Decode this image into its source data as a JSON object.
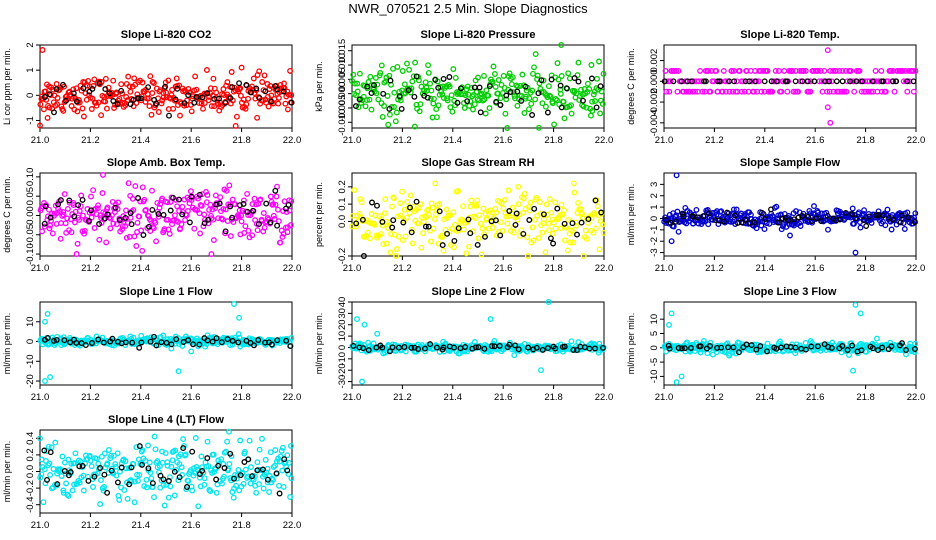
{
  "page_title": "NWR_070521  2.5 Min. Slope Diagnostics",
  "chart_data": [
    {
      "type": "scatter",
      "title": "Slope Li-820 CO2",
      "ylabel": "Li cor ppm per min.",
      "color": "#ff0000",
      "xlim": [
        21.0,
        22.0
      ],
      "xticks": [
        21.0,
        21.2,
        21.4,
        21.6,
        21.8,
        22.0
      ],
      "ylim": [
        -1.3,
        2.0
      ],
      "yticks": [
        -1.0,
        0.0,
        1.0,
        2.0
      ],
      "spread": 0.35,
      "outliers": [
        [
          21.01,
          1.8
        ],
        [
          21.0,
          -1.2
        ],
        [
          21.8,
          1.1
        ],
        [
          21.03,
          -0.9
        ]
      ],
      "n": 300
    },
    {
      "type": "scatter",
      "title": "Slope Li-820 Pressure",
      "ylabel": "kPa per min.",
      "color": "#00cc00",
      "xlim": [
        21.0,
        22.0
      ],
      "xticks": [
        21.0,
        21.2,
        21.4,
        21.6,
        21.8,
        22.0
      ],
      "ylim": [
        -0.012,
        0.017
      ],
      "yticks": [
        -0.01,
        -0.005,
        0.0,
        0.005,
        0.01,
        0.015
      ],
      "spread": 0.0045,
      "outliers": [
        [
          21.83,
          0.017
        ],
        [
          21.95,
          0.01
        ]
      ],
      "n": 280
    },
    {
      "type": "scatter",
      "title": "Slope Li-820 Temp.",
      "ylabel": "degrees C per min.",
      "color": "#ff00ff",
      "xlim": [
        21.0,
        22.0
      ],
      "xticks": [
        21.0,
        21.2,
        21.4,
        21.6,
        21.8,
        22.0
      ],
      "ylim": [
        -0.0045,
        0.0035
      ],
      "yticks": [
        -0.004,
        -0.002,
        0.0,
        0.002
      ],
      "spread": 0.0,
      "levels": [
        -0.001,
        0.0,
        0.001
      ],
      "outliers": [
        [
          21.65,
          0.003
        ],
        [
          21.66,
          -0.004
        ],
        [
          21.65,
          -0.0025
        ]
      ],
      "n": 220
    },
    {
      "type": "scatter",
      "title": "Slope Amb. Box Temp.",
      "ylabel": "degrees C per min.",
      "color": "#ff00ff",
      "xlim": [
        21.0,
        22.0
      ],
      "xticks": [
        21.0,
        21.2,
        21.4,
        21.6,
        21.8,
        22.0
      ],
      "ylim": [
        -0.105,
        0.11
      ],
      "yticks": [
        -0.1,
        -0.05,
        0.0,
        0.05,
        0.1
      ],
      "spread": 0.035,
      "outliers": [
        [
          21.25,
          0.105
        ],
        [
          21.68,
          -0.1
        ]
      ],
      "n": 300
    },
    {
      "type": "scatter",
      "title": "Slope Gas Stream RH",
      "ylabel": "percent per min.",
      "color": "#ffff00",
      "xlim": [
        21.0,
        22.0
      ],
      "xticks": [
        21.0,
        21.2,
        21.4,
        21.6,
        21.8,
        22.0
      ],
      "ylim": [
        -0.2,
        0.28
      ],
      "yticks": [
        -0.2,
        0.0,
        0.1,
        0.2
      ],
      "spread": 0.08,
      "outliers": [
        [
          21.33,
          0.22
        ],
        [
          21.66,
          0.2
        ],
        [
          21.88,
          0.22
        ]
      ],
      "n": 260
    },
    {
      "type": "scatter",
      "title": "Slope Sample Flow",
      "ylabel": "ml/min per min.",
      "color": "#0000cc",
      "xlim": [
        21.0,
        22.0
      ],
      "xticks": [
        21.0,
        21.2,
        21.4,
        21.6,
        21.8,
        22.0
      ],
      "ylim": [
        -3.3,
        4.0
      ],
      "yticks": [
        -3,
        -2,
        -1,
        0,
        1,
        2,
        3
      ],
      "spread": 0.4,
      "outliers": [
        [
          21.05,
          3.8
        ],
        [
          21.03,
          -2.0
        ],
        [
          21.76,
          -3.0
        ],
        [
          21.5,
          -1.5
        ]
      ],
      "n": 320
    },
    {
      "type": "scatter",
      "title": "Slope Line 1 Flow",
      "ylabel": "ml/min per min.",
      "color": "#00e5ee",
      "xlim": [
        21.0,
        22.0
      ],
      "xticks": [
        21.0,
        21.2,
        21.4,
        21.6,
        21.8,
        22.0
      ],
      "ylim": [
        -22,
        20
      ],
      "yticks": [
        -20,
        -10,
        0,
        10
      ],
      "spread": 1.2,
      "outliers": [
        [
          21.02,
          -20
        ],
        [
          21.04,
          -18
        ],
        [
          21.03,
          14
        ],
        [
          21.02,
          10
        ],
        [
          21.77,
          19
        ],
        [
          21.79,
          12
        ],
        [
          21.55,
          -15
        ],
        [
          21.6,
          -5
        ]
      ],
      "n": 300
    },
    {
      "type": "scatter",
      "title": "Slope Line 2 Flow",
      "ylabel": "ml/min per min.",
      "color": "#00e5ee",
      "xlim": [
        21.0,
        22.0
      ],
      "xticks": [
        21.0,
        21.2,
        21.4,
        21.6,
        21.8,
        22.0
      ],
      "ylim": [
        -33,
        40
      ],
      "yticks": [
        -30,
        -20,
        -10,
        0,
        10,
        20,
        30,
        40
      ],
      "spread": 2.0,
      "outliers": [
        [
          21.04,
          -30
        ],
        [
          21.02,
          25
        ],
        [
          21.05,
          20
        ],
        [
          21.55,
          25
        ],
        [
          21.78,
          40
        ],
        [
          21.75,
          -20
        ],
        [
          21.1,
          12
        ]
      ],
      "n": 300
    },
    {
      "type": "scatter",
      "title": "Slope Line 3 Flow",
      "ylabel": "ml/min per min.",
      "color": "#00e5ee",
      "xlim": [
        21.0,
        22.0
      ],
      "xticks": [
        21.0,
        21.2,
        21.4,
        21.6,
        21.8,
        22.0
      ],
      "ylim": [
        -13,
        16
      ],
      "yticks": [
        -10,
        -5,
        0,
        5,
        10
      ],
      "spread": 0.9,
      "outliers": [
        [
          21.03,
          12
        ],
        [
          21.05,
          -12
        ],
        [
          21.02,
          8
        ],
        [
          21.07,
          -10
        ],
        [
          21.76,
          15
        ],
        [
          21.75,
          -8
        ],
        [
          21.78,
          12
        ]
      ],
      "n": 300
    },
    {
      "type": "scatter",
      "title": "Slope Line 4 (LT) Flow",
      "ylabel": "ml/min per min.",
      "color": "#00e5ee",
      "xlim": [
        21.0,
        22.0
      ],
      "xticks": [
        21.0,
        21.2,
        21.4,
        21.6,
        21.8,
        22.0
      ],
      "ylim": [
        -0.5,
        0.5
      ],
      "yticks": [
        -0.4,
        -0.2,
        0.0,
        0.2,
        0.4
      ],
      "spread": 0.17,
      "outliers": [
        [
          21.75,
          0.48
        ],
        [
          21.0,
          0.4
        ]
      ],
      "n": 300
    }
  ]
}
